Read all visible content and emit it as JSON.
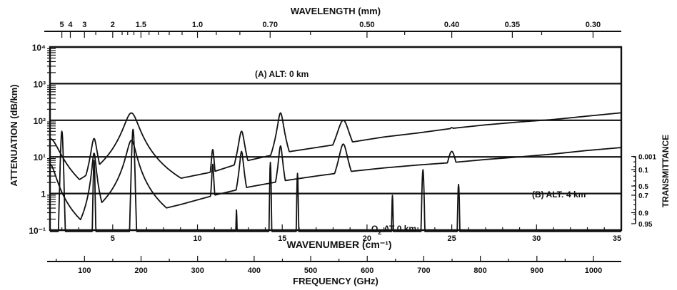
{
  "chart_data": {
    "type": "line",
    "y_scale": "log",
    "ylim": [
      0.1,
      10000
    ],
    "y_tick_labels": [
      "10⁻¹",
      "1",
      "10¹",
      "10²",
      "10³",
      "10⁴"
    ],
    "ylabel": "ATTENUATION (dB/km)",
    "xlim_wavenumber": [
      1.3,
      35
    ],
    "x_tick_labels": [
      "5",
      "10",
      "15",
      "20",
      "25",
      "30",
      "35"
    ],
    "x_ticks": [
      5,
      10,
      15,
      20,
      25,
      30,
      35
    ],
    "xlabel": "WAVENUMBER (cm⁻¹)",
    "top_axis": {
      "label": "WAVELENGTH (mm)",
      "ticks": [
        {
          "text": "5",
          "mm": 5
        },
        {
          "text": "4",
          "mm": 4
        },
        {
          "text": "3",
          "mm": 3
        },
        {
          "text": "2",
          "mm": 2
        },
        {
          "text": "1.5",
          "mm": 1.5
        },
        {
          "text": "1.0",
          "mm": 1.0
        },
        {
          "text": "0.70",
          "mm": 0.7
        },
        {
          "text": "0.50",
          "mm": 0.5
        },
        {
          "text": "0.40",
          "mm": 0.4
        },
        {
          "text": "0.35",
          "mm": 0.35
        },
        {
          "text": "0.30",
          "mm": 0.3
        }
      ]
    },
    "bottom_axis": {
      "label": "FREQUENCY (GHz)",
      "ticks": [
        {
          "text": "100",
          "ghz": 100
        },
        {
          "text": "200",
          "ghz": 200
        },
        {
          "text": "300",
          "ghz": 300
        },
        {
          "text": "400",
          "ghz": 400
        },
        {
          "text": "500",
          "ghz": 500
        },
        {
          "text": "600",
          "ghz": 600
        },
        {
          "text": "700",
          "ghz": 700
        },
        {
          "text": "800",
          "ghz": 800
        },
        {
          "text": "900",
          "ghz": 900
        },
        {
          "text": "1000",
          "ghz": 1000
        }
      ]
    },
    "right_axis": {
      "label": "TRANSMITTANCE",
      "ticks": [
        {
          "text": "0.001",
          "attenuation": 10.3
        },
        {
          "text": "0.1",
          "attenuation": 4.5
        },
        {
          "text": "0.5",
          "attenuation": 1.6
        },
        {
          "text": "0.7",
          "attenuation": 0.9
        },
        {
          "text": "0.9",
          "attenuation": 0.3
        },
        {
          "text": "0.95",
          "attenuation": 0.15
        }
      ]
    },
    "annotations": {
      "series_a": "(A) ALT: 0 km",
      "series_b": "(B) ALT: 4 km",
      "series_o2_main": "O",
      "series_o2_sub": "2",
      "series_o2_rest": " AT 0 km"
    },
    "series": [
      {
        "id": "alt-0km",
        "background": [
          [
            1.3,
            3
          ],
          [
            2,
            0.9
          ],
          [
            3,
            0.35
          ],
          [
            4,
            0.4
          ],
          [
            5,
            0.6
          ],
          [
            7,
            1.5
          ],
          [
            9,
            2.6
          ],
          [
            11,
            4
          ],
          [
            13,
            8
          ],
          [
            15,
            13
          ],
          [
            17,
            18
          ],
          [
            19,
            25
          ],
          [
            21,
            35
          ],
          [
            23,
            45
          ],
          [
            25,
            60
          ],
          [
            27,
            75
          ],
          [
            29,
            90
          ],
          [
            31,
            105
          ],
          [
            33,
            130
          ],
          [
            35,
            160
          ]
        ],
        "lines": [
          [
            1.3,
            1.5
          ],
          [
            3.9,
            1.5
          ],
          [
            6.1,
            2.2
          ],
          [
            10.9,
            1.2
          ],
          [
            12.6,
            1.7
          ],
          [
            14.9,
            2.2
          ],
          [
            16.3,
            0.55
          ],
          [
            16.8,
            0.35
          ],
          [
            18.6,
            2.0
          ],
          [
            20.7,
            0.8
          ],
          [
            25.0,
            1.8
          ],
          [
            30.5,
            0.8
          ],
          [
            32.4,
            0.5
          ],
          [
            33.0,
            1.3
          ]
        ],
        "widths": [
          0.5,
          0.16,
          0.38,
          0.08,
          0.16,
          0.16,
          0.1,
          0.1,
          0.32,
          0.1,
          0.35,
          0.1,
          0.1,
          0.35
        ]
      },
      {
        "id": "alt-4km",
        "background": [
          [
            1.3,
            0.5
          ],
          [
            2,
            0.15
          ],
          [
            3,
            0.08
          ],
          [
            4,
            0.09
          ],
          [
            5,
            0.15
          ],
          [
            7,
            0.3
          ],
          [
            9,
            0.5
          ],
          [
            11,
            0.9
          ],
          [
            13,
            1.5
          ],
          [
            15,
            2.2
          ],
          [
            17,
            3
          ],
          [
            19,
            4
          ],
          [
            21,
            5
          ],
          [
            23,
            6
          ],
          [
            25,
            7
          ],
          [
            27,
            8.5
          ],
          [
            29,
            10
          ],
          [
            31,
            12
          ],
          [
            33,
            15
          ],
          [
            35,
            18
          ]
        ],
        "lines": [
          [
            1.3,
            0.8
          ],
          [
            3.9,
            1.1
          ],
          [
            6.1,
            1.45
          ],
          [
            10.9,
            0.8
          ],
          [
            12.6,
            1.15
          ],
          [
            14.9,
            1.3
          ],
          [
            16.3,
            0.15
          ],
          [
            16.8,
            0.1
          ],
          [
            18.6,
            1.35
          ],
          [
            20.7,
            0.5
          ],
          [
            25.0,
            1.15
          ],
          [
            30.5,
            0.6
          ],
          [
            32.4,
            0.3
          ],
          [
            33.0,
            0.95
          ]
        ],
        "widths": [
          0.32,
          0.1,
          0.25,
          0.05,
          0.1,
          0.1,
          0.06,
          0.06,
          0.22,
          0.06,
          0.25,
          0.06,
          0.06,
          0.25
        ]
      },
      {
        "id": "o2-0km",
        "background": [],
        "lines": [
          [
            2.0,
            1.7
          ],
          [
            3.9,
            0.9
          ],
          [
            6.2,
            1.75
          ],
          [
            12.3,
            -0.45
          ],
          [
            14.3,
            0.85
          ],
          [
            15.9,
            0.55
          ],
          [
            21.5,
            -0.05
          ],
          [
            23.3,
            0.65
          ],
          [
            25.4,
            0.25
          ]
        ],
        "widths": [
          0.15,
          0.1,
          0.15,
          0.07,
          0.08,
          0.08,
          0.08,
          0.12,
          0.1
        ]
      }
    ]
  }
}
